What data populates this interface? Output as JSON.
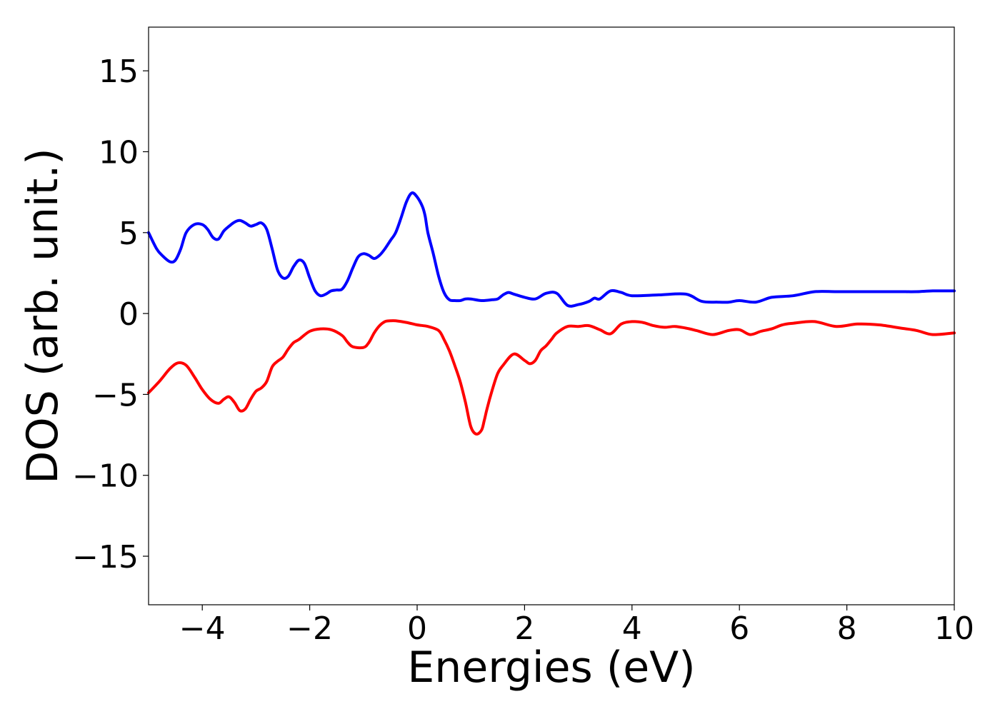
{
  "chart_data": {
    "type": "line",
    "title": "",
    "xlabel": "Energies (eV)",
    "ylabel": "DOS (arb. unit.)",
    "xlim": [
      -5,
      10
    ],
    "ylim": [
      -18,
      17.7
    ],
    "grid": false,
    "legend": "none",
    "xticks": [
      -4,
      -2,
      0,
      2,
      4,
      6,
      8,
      10
    ],
    "xtick_labels": [
      "−4",
      "−2",
      "0",
      "2",
      "4",
      "6",
      "8",
      "10"
    ],
    "yticks": [
      -15,
      -10,
      -5,
      0,
      5,
      10,
      15
    ],
    "ytick_labels": [
      "−15",
      "−10",
      "−5",
      "0",
      "5",
      "10",
      "15"
    ],
    "series": [
      {
        "color": "#0000ff",
        "x": [
          -5.0,
          -4.85,
          -4.75,
          -4.6,
          -4.5,
          -4.4,
          -4.3,
          -4.15,
          -4.0,
          -3.9,
          -3.8,
          -3.7,
          -3.6,
          -3.5,
          -3.4,
          -3.3,
          -3.2,
          -3.1,
          -3.0,
          -2.9,
          -2.8,
          -2.7,
          -2.6,
          -2.5,
          -2.4,
          -2.3,
          -2.2,
          -2.1,
          -2.0,
          -1.9,
          -1.8,
          -1.7,
          -1.6,
          -1.5,
          -1.4,
          -1.3,
          -1.2,
          -1.1,
          -1.0,
          -0.9,
          -0.8,
          -0.7,
          -0.6,
          -0.5,
          -0.4,
          -0.3,
          -0.2,
          -0.1,
          0.0,
          0.1,
          0.15,
          0.2,
          0.3,
          0.4,
          0.5,
          0.6,
          0.7,
          0.8,
          0.9,
          1.0,
          1.2,
          1.4,
          1.5,
          1.6,
          1.7,
          1.8,
          2.0,
          2.2,
          2.4,
          2.6,
          2.8,
          3.0,
          3.2,
          3.3,
          3.4,
          3.6,
          3.8,
          4.0,
          4.5,
          5.0,
          5.3,
          5.6,
          5.8,
          6.0,
          6.3,
          6.6,
          7.0,
          7.4,
          7.8,
          8.2,
          8.7,
          9.0,
          9.3,
          9.6,
          10.0
        ],
        "values": [
          5.0,
          4.0,
          3.6,
          3.2,
          3.3,
          4.0,
          5.0,
          5.5,
          5.5,
          5.2,
          4.7,
          4.6,
          5.1,
          5.4,
          5.65,
          5.75,
          5.6,
          5.4,
          5.5,
          5.6,
          5.2,
          4.0,
          2.7,
          2.2,
          2.3,
          2.9,
          3.3,
          3.1,
          2.2,
          1.4,
          1.1,
          1.2,
          1.4,
          1.45,
          1.5,
          2.0,
          2.8,
          3.5,
          3.7,
          3.6,
          3.4,
          3.6,
          4.0,
          4.5,
          5.0,
          5.9,
          6.9,
          7.45,
          7.2,
          6.6,
          6.0,
          5.0,
          3.7,
          2.3,
          1.3,
          0.85,
          0.8,
          0.8,
          0.9,
          0.9,
          0.8,
          0.85,
          0.9,
          1.15,
          1.3,
          1.2,
          1.0,
          0.9,
          1.25,
          1.25,
          0.5,
          0.55,
          0.75,
          0.95,
          0.9,
          1.4,
          1.3,
          1.1,
          1.15,
          1.2,
          0.75,
          0.7,
          0.7,
          0.8,
          0.7,
          1.0,
          1.1,
          1.35,
          1.35,
          1.35,
          1.35,
          1.35,
          1.35,
          1.4,
          1.4
        ]
      },
      {
        "color": "#ff0000",
        "x": [
          -5.0,
          -4.8,
          -4.6,
          -4.45,
          -4.3,
          -4.15,
          -4.0,
          -3.85,
          -3.7,
          -3.6,
          -3.5,
          -3.4,
          -3.3,
          -3.2,
          -3.1,
          -3.0,
          -2.9,
          -2.8,
          -2.7,
          -2.6,
          -2.5,
          -2.4,
          -2.3,
          -2.2,
          -2.0,
          -1.8,
          -1.6,
          -1.4,
          -1.3,
          -1.2,
          -1.0,
          -0.9,
          -0.8,
          -0.7,
          -0.6,
          -0.5,
          -0.4,
          -0.2,
          0.0,
          0.2,
          0.4,
          0.5,
          0.6,
          0.7,
          0.8,
          0.9,
          1.0,
          1.1,
          1.2,
          1.25,
          1.3,
          1.4,
          1.5,
          1.6,
          1.8,
          2.0,
          2.1,
          2.2,
          2.3,
          2.4,
          2.5,
          2.6,
          2.8,
          3.0,
          3.2,
          3.4,
          3.6,
          3.8,
          4.0,
          4.2,
          4.4,
          4.6,
          4.8,
          5.0,
          5.2,
          5.5,
          5.8,
          6.0,
          6.2,
          6.4,
          6.6,
          6.8,
          7.0,
          7.4,
          7.8,
          8.2,
          8.6,
          9.0,
          9.3,
          9.6,
          10.0
        ],
        "values": [
          -4.9,
          -4.2,
          -3.4,
          -3.05,
          -3.2,
          -3.9,
          -4.7,
          -5.3,
          -5.55,
          -5.3,
          -5.15,
          -5.5,
          -6.0,
          -5.9,
          -5.3,
          -4.8,
          -4.6,
          -4.2,
          -3.3,
          -2.95,
          -2.7,
          -2.2,
          -1.8,
          -1.6,
          -1.1,
          -0.95,
          -1.0,
          -1.35,
          -1.75,
          -2.05,
          -2.1,
          -1.8,
          -1.2,
          -0.75,
          -0.5,
          -0.45,
          -0.45,
          -0.55,
          -0.7,
          -0.8,
          -1.05,
          -1.6,
          -2.3,
          -3.2,
          -4.2,
          -5.5,
          -7.0,
          -7.45,
          -7.2,
          -6.6,
          -5.9,
          -4.7,
          -3.7,
          -3.2,
          -2.5,
          -2.9,
          -3.1,
          -2.9,
          -2.3,
          -2.0,
          -1.6,
          -1.2,
          -0.8,
          -0.8,
          -0.75,
          -1.0,
          -1.25,
          -0.65,
          -0.5,
          -0.55,
          -0.75,
          -0.85,
          -0.8,
          -0.9,
          -1.05,
          -1.3,
          -1.05,
          -1.0,
          -1.3,
          -1.1,
          -0.95,
          -0.7,
          -0.6,
          -0.5,
          -0.8,
          -0.65,
          -0.7,
          -0.9,
          -1.05,
          -1.3,
          -1.2
        ]
      }
    ]
  }
}
